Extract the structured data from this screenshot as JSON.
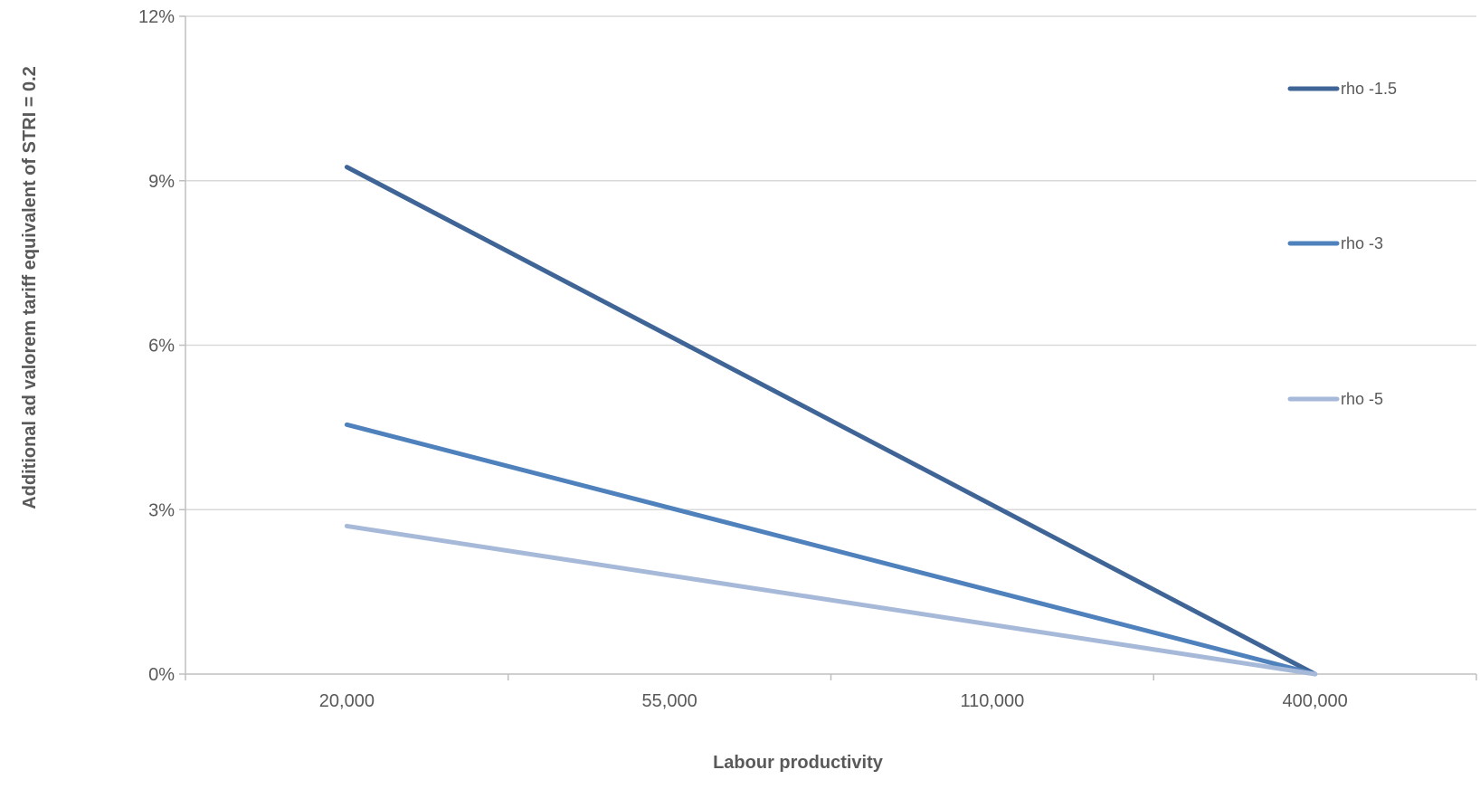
{
  "chart_data": {
    "type": "line",
    "xlabel": "Labour productivity",
    "ylabel": "Additional ad valorem tariff equivalent of STRI = 0.2",
    "categories": [
      "20,000",
      "55,000",
      "110,000",
      "400,000"
    ],
    "yticks": [
      "0%",
      "3%",
      "6%",
      "9%",
      "12%"
    ],
    "ylim": [
      0,
      12
    ],
    "grid": "horizontal",
    "legend_position": "right",
    "series": [
      {
        "name": "rho -1.5",
        "color": "#3f6496",
        "points": [
          {
            "x": "20,000",
            "y": 9.25
          },
          {
            "x": "400,000",
            "y": 0
          }
        ]
      },
      {
        "name": "rho -3",
        "color": "#4f81bd",
        "points": [
          {
            "x": "20,000",
            "y": 4.55
          },
          {
            "x": "400,000",
            "y": 0
          }
        ]
      },
      {
        "name": "rho -5",
        "color": "#a6b9d9",
        "points": [
          {
            "x": "20,000",
            "y": 2.7
          },
          {
            "x": "400,000",
            "y": 0
          }
        ]
      }
    ]
  }
}
